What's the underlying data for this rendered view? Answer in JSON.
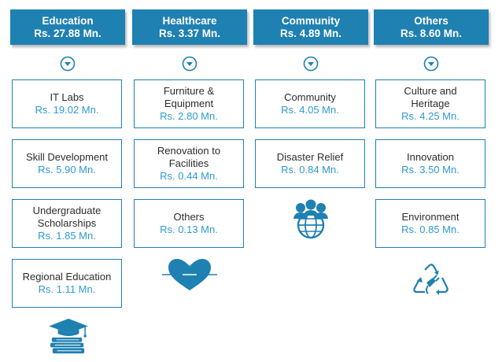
{
  "colors": {
    "header_bg": "#1f80b2",
    "amount": "#2f9ad2",
    "border": "#1f80b2",
    "text": "#2d2d2d"
  },
  "columns": [
    {
      "title": "Education",
      "amount": "Rs. 27.88 Mn.",
      "icon": "graduation-books-icon",
      "items": [
        {
          "label": "IT Labs",
          "amount": "Rs. 19.02 Mn."
        },
        {
          "label": "Skill Development",
          "amount": "Rs. 5.90 Mn."
        },
        {
          "label": "Undergraduate Scholarships",
          "amount": "Rs. 1.85 Mn."
        },
        {
          "label": "Regional Education",
          "amount": "Rs. 1.11 Mn."
        }
      ]
    },
    {
      "title": "Healthcare",
      "amount": "Rs. 3.37 Mn.",
      "icon": "heart-pulse-icon",
      "items": [
        {
          "label": "Furniture & Equipment",
          "amount": "Rs. 2.80 Mn."
        },
        {
          "label": "Renovation to Facilities",
          "amount": "Rs. 0.44 Mn."
        },
        {
          "label": "Others",
          "amount": "Rs. 0.13 Mn."
        }
      ]
    },
    {
      "title": "Community",
      "amount": "Rs. 4.89 Mn.",
      "icon": "people-globe-icon",
      "items": [
        {
          "label": "Community",
          "amount": "Rs. 4.05 Mn."
        },
        {
          "label": "Disaster Relief",
          "amount": "Rs. 0.84 Mn."
        }
      ]
    },
    {
      "title": "Others",
      "amount": "Rs. 8.60 Mn.",
      "icon": "recycle-plug-icon",
      "items": [
        {
          "label": "Culture and Heritage",
          "amount": "Rs. 4.25 Mn."
        },
        {
          "label": "Innovation",
          "amount": "Rs. 3.50 Mn."
        },
        {
          "label": "Environment",
          "amount": "Rs. 0.85 Mn."
        }
      ]
    }
  ]
}
